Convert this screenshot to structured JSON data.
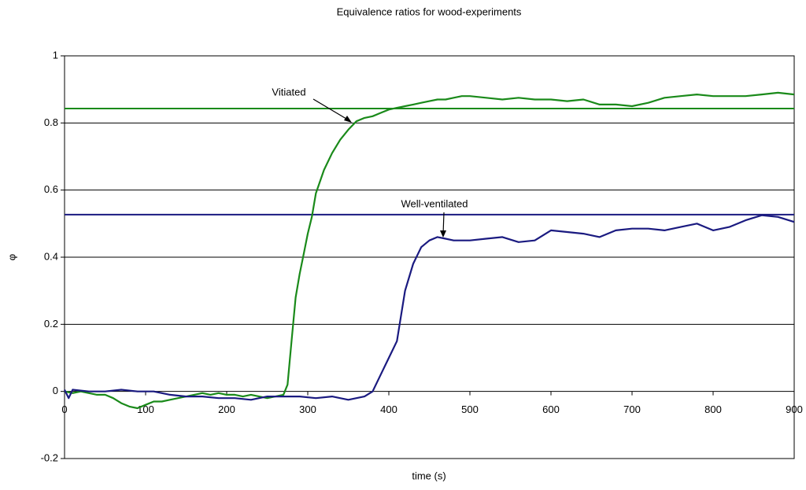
{
  "chart_data": {
    "type": "line",
    "title": "Equivalence ratios for wood-experiments",
    "xlabel": "time (s)",
    "ylabel": "φ",
    "xlim": [
      0,
      900
    ],
    "xticks": [
      0,
      100,
      200,
      300,
      400,
      500,
      600,
      700,
      800,
      900
    ],
    "ylim": [
      -0.2,
      1
    ],
    "yticks": [
      -0.2,
      0,
      0.2,
      0.4,
      0.6,
      0.8,
      1
    ],
    "grid": true,
    "series": [
      {
        "name": "Vitiated",
        "color": "#1a8a1a",
        "x": [
          0,
          10,
          20,
          30,
          40,
          50,
          60,
          70,
          80,
          90,
          100,
          110,
          120,
          130,
          140,
          150,
          160,
          170,
          180,
          190,
          200,
          210,
          220,
          230,
          240,
          250,
          260,
          270,
          275,
          280,
          285,
          290,
          295,
          300,
          305,
          310,
          320,
          330,
          340,
          350,
          360,
          370,
          380,
          390,
          400,
          410,
          420,
          430,
          440,
          450,
          460,
          470,
          480,
          490,
          500,
          520,
          540,
          560,
          580,
          600,
          620,
          640,
          660,
          680,
          700,
          720,
          740,
          760,
          780,
          800,
          820,
          840,
          860,
          880,
          900
        ],
        "values": [
          0.0,
          -0.005,
          0.0,
          -0.005,
          -0.01,
          -0.01,
          -0.02,
          -0.035,
          -0.045,
          -0.05,
          -0.04,
          -0.03,
          -0.03,
          -0.025,
          -0.02,
          -0.015,
          -0.01,
          -0.005,
          -0.01,
          -0.005,
          -0.01,
          -0.01,
          -0.015,
          -0.01,
          -0.015,
          -0.02,
          -0.015,
          -0.01,
          0.02,
          0.15,
          0.28,
          0.35,
          0.41,
          0.47,
          0.52,
          0.59,
          0.66,
          0.71,
          0.75,
          0.78,
          0.805,
          0.815,
          0.82,
          0.83,
          0.84,
          0.845,
          0.85,
          0.855,
          0.86,
          0.865,
          0.87,
          0.87,
          0.875,
          0.88,
          0.88,
          0.875,
          0.87,
          0.875,
          0.87,
          0.87,
          0.865,
          0.87,
          0.855,
          0.855,
          0.85,
          0.86,
          0.875,
          0.88,
          0.885,
          0.88,
          0.88,
          0.88,
          0.885,
          0.89,
          0.885
        ]
      },
      {
        "name": "Well-ventilated",
        "color": "#1a1a80",
        "x": [
          0,
          5,
          10,
          30,
          50,
          70,
          90,
          110,
          130,
          150,
          170,
          190,
          210,
          230,
          250,
          270,
          290,
          310,
          330,
          350,
          370,
          380,
          390,
          400,
          410,
          420,
          430,
          440,
          450,
          460,
          470,
          480,
          500,
          520,
          540,
          560,
          580,
          600,
          620,
          640,
          660,
          680,
          700,
          720,
          740,
          760,
          780,
          800,
          820,
          840,
          860,
          880,
          900
        ],
        "values": [
          0.005,
          -0.02,
          0.005,
          0.0,
          0.0,
          0.005,
          0.0,
          0.0,
          -0.01,
          -0.015,
          -0.015,
          -0.02,
          -0.02,
          -0.025,
          -0.015,
          -0.015,
          -0.015,
          -0.02,
          -0.015,
          -0.025,
          -0.015,
          0.0,
          0.05,
          0.1,
          0.15,
          0.3,
          0.38,
          0.43,
          0.45,
          0.46,
          0.455,
          0.45,
          0.45,
          0.455,
          0.46,
          0.445,
          0.45,
          0.48,
          0.475,
          0.47,
          0.46,
          0.48,
          0.485,
          0.485,
          0.48,
          0.49,
          0.5,
          0.48,
          0.49,
          0.51,
          0.525,
          0.52,
          0.505
        ]
      }
    ],
    "reference_lines": [
      {
        "value": 0.843,
        "color": "#1a8a1a"
      },
      {
        "value": 0.527,
        "color": "#1a1a80"
      }
    ]
  }
}
